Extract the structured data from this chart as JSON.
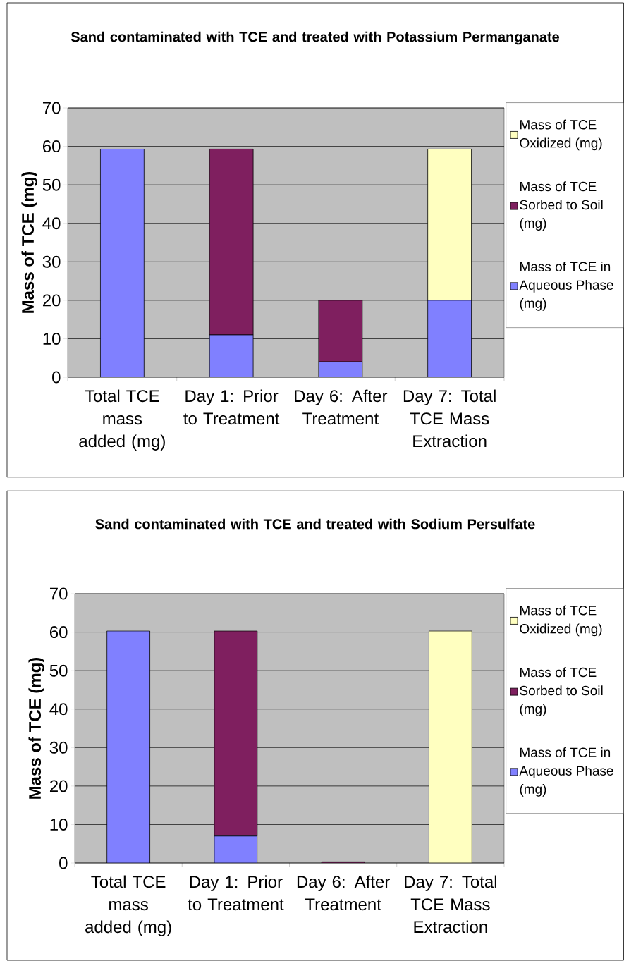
{
  "chart_data": [
    {
      "type": "bar",
      "title": "Sand contaminated with TCE and treated with Potassium Permanganate",
      "ylabel": "Mass of TCE (mg)",
      "categories": [
        "Total TCE mass added (mg)",
        "Day 1: Prior to Treatment",
        "Day 6: After Treatment",
        "Day 7: Total TCE Mass Extraction"
      ],
      "series": [
        {
          "name": "Mass of TCE in Aqueous Phase (mg)",
          "color": "#8080ff",
          "values": [
            59.3,
            11,
            4,
            20
          ]
        },
        {
          "name": "Mass of TCE Sorbed to Soil (mg)",
          "color": "#7f1f5f",
          "values": [
            null,
            48.3,
            16,
            null
          ]
        },
        {
          "name": "Mass of TCE Oxidized (mg)",
          "color": "#ffffc0",
          "values": [
            null,
            null,
            null,
            39.3
          ]
        }
      ],
      "stacked": true,
      "ylim": [
        0,
        70
      ],
      "yticks": [
        0,
        10,
        20,
        30,
        40,
        50,
        60,
        70
      ],
      "grid": "y",
      "legend": "right"
    },
    {
      "type": "bar",
      "title": "Sand contaminated with TCE and treated with Sodium Persulfate",
      "ylabel": "Mass of TCE (mg)",
      "categories": [
        "Total TCE mass added (mg)",
        "Day 1: Prior to Treatment",
        "Day 6: After Treatment",
        "Day 7: Total TCE Mass Extraction"
      ],
      "series": [
        {
          "name": "Mass of TCE in Aqueous Phase (mg)",
          "color": "#8080ff",
          "values": [
            60.3,
            7,
            null,
            null
          ]
        },
        {
          "name": "Mass of TCE Sorbed to Soil (mg)",
          "color": "#7f1f5f",
          "values": [
            null,
            53.3,
            0.3,
            null
          ]
        },
        {
          "name": "Mass of TCE Oxidized (mg)",
          "color": "#ffffc0",
          "values": [
            null,
            null,
            null,
            60.3
          ]
        }
      ],
      "stacked": true,
      "ylim": [
        0,
        70
      ],
      "yticks": [
        0,
        10,
        20,
        30,
        40,
        50,
        60,
        70
      ],
      "grid": "y",
      "legend": "right"
    }
  ]
}
